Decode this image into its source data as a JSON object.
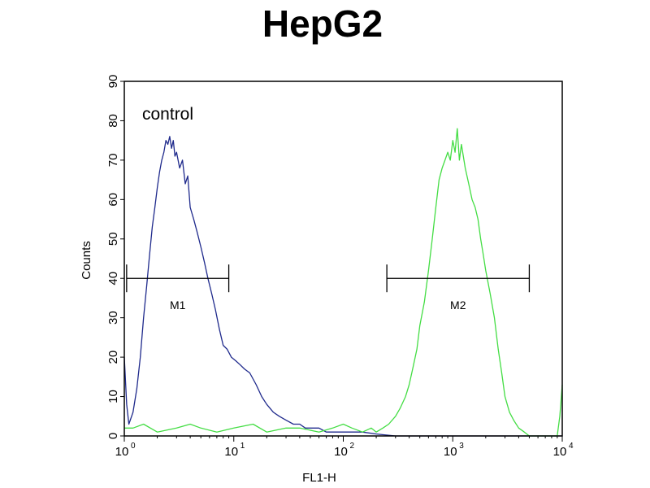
{
  "chart_data": {
    "type": "line",
    "title": "HepG2",
    "xlabel": "FL1-H",
    "ylabel": "Counts",
    "x_scale": "log",
    "xlim": [
      1,
      10000
    ],
    "ylim": [
      0,
      90
    ],
    "x_ticks": [
      {
        "base": "10",
        "exp": "0",
        "value": 1
      },
      {
        "base": "10",
        "exp": "1",
        "value": 10
      },
      {
        "base": "10",
        "exp": "2",
        "value": 100
      },
      {
        "base": "10",
        "exp": "3",
        "value": 1000
      },
      {
        "base": "10",
        "exp": "4",
        "value": 10000
      }
    ],
    "y_ticks": [
      "0",
      "10",
      "20",
      "30",
      "40",
      "50",
      "60",
      "70",
      "80",
      "90"
    ],
    "annotations": [
      {
        "text": "control"
      }
    ],
    "markers": [
      {
        "label": "M1",
        "x_start": 1.05,
        "x_end": 9.0,
        "y": 40
      },
      {
        "label": "M2",
        "x_start": 250,
        "x_end": 5000,
        "y": 40
      }
    ],
    "series": [
      {
        "color": "#1f2a8c",
        "x": [
          1,
          1.05,
          1.1,
          1.2,
          1.3,
          1.4,
          1.5,
          1.6,
          1.7,
          1.8,
          1.9,
          2.0,
          2.1,
          2.2,
          2.3,
          2.4,
          2.5,
          2.6,
          2.7,
          2.8,
          2.9,
          3.0,
          3.2,
          3.4,
          3.6,
          3.8,
          4.0,
          4.3,
          4.6,
          5.0,
          5.4,
          5.8,
          6.3,
          6.8,
          7.4,
          8.0,
          8.7,
          9.5,
          10.5,
          11.5,
          12.5,
          14,
          16,
          18,
          20,
          23,
          26,
          30,
          35,
          40,
          45,
          50,
          60,
          70,
          80,
          100,
          120,
          150,
          200,
          300,
          500,
          1000,
          3000,
          10000
        ],
        "y": [
          20,
          8,
          3,
          6,
          12,
          20,
          30,
          38,
          46,
          53,
          58,
          63,
          67,
          70,
          72,
          75,
          74,
          76,
          73,
          75,
          71,
          72,
          68,
          70,
          64,
          66,
          58,
          55,
          52,
          48,
          44,
          40,
          36,
          32,
          27,
          23,
          22,
          20,
          19,
          18,
          17,
          16,
          13,
          10,
          8,
          6,
          5,
          4,
          3,
          3,
          2,
          2,
          2,
          1,
          1,
          1,
          1,
          1,
          0.5,
          0,
          0,
          0,
          0,
          0
        ]
      },
      {
        "color": "#44dd44",
        "x": [
          1,
          1.2,
          1.5,
          2,
          3,
          4,
          5,
          7,
          10,
          15,
          20,
          30,
          40,
          60,
          80,
          100,
          120,
          150,
          180,
          200,
          230,
          260,
          300,
          330,
          370,
          400,
          430,
          470,
          500,
          550,
          600,
          650,
          700,
          750,
          800,
          850,
          900,
          950,
          1000,
          1050,
          1100,
          1150,
          1200,
          1300,
          1400,
          1500,
          1600,
          1700,
          1800,
          1900,
          2000,
          2200,
          2400,
          2600,
          2800,
          3000,
          3300,
          3600,
          4000,
          4500,
          5000,
          6000,
          7000,
          8000,
          9000,
          9500,
          10000
        ],
        "y": [
          2,
          2,
          3,
          1,
          2,
          3,
          2,
          1,
          2,
          3,
          1,
          2,
          2,
          1,
          2,
          3,
          2,
          1,
          2,
          1,
          2,
          3,
          5,
          7,
          10,
          13,
          17,
          22,
          28,
          34,
          42,
          50,
          58,
          65,
          68,
          70,
          72,
          70,
          75,
          72,
          78,
          70,
          74,
          68,
          64,
          60,
          58,
          55,
          50,
          46,
          42,
          36,
          30,
          22,
          16,
          10,
          6,
          4,
          2,
          1,
          0,
          0,
          0,
          0,
          0,
          5,
          13
        ]
      }
    ]
  }
}
